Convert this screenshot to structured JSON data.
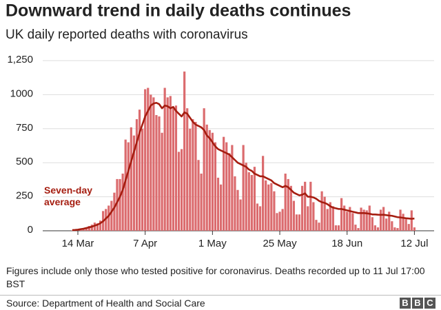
{
  "chart_data": {
    "type": "bar",
    "title": "Downward trend in daily deaths continues",
    "subtitle": "UK daily reported deaths with coronavirus",
    "categories": [
      null,
      null,
      "14 Mar",
      null,
      null,
      null,
      null,
      null,
      null,
      null,
      null,
      null,
      null,
      null,
      null,
      null,
      null,
      null,
      null,
      null,
      null,
      null,
      null,
      null,
      null,
      null,
      "7 Apr",
      null,
      null,
      null,
      null,
      null,
      null,
      null,
      null,
      null,
      null,
      null,
      null,
      null,
      null,
      null,
      null,
      null,
      null,
      null,
      null,
      null,
      null,
      null,
      "1 May",
      null,
      null,
      null,
      null,
      null,
      null,
      null,
      null,
      null,
      null,
      null,
      null,
      null,
      null,
      null,
      null,
      null,
      null,
      null,
      null,
      null,
      null,
      null,
      "25 May",
      null,
      null,
      null,
      null,
      null,
      null,
      null,
      null,
      null,
      null,
      null,
      null,
      null,
      null,
      null,
      null,
      null,
      null,
      null,
      null,
      null,
      null,
      null,
      "18 Jun",
      null,
      null,
      null,
      null,
      null,
      null,
      null,
      null,
      null,
      null,
      null,
      null,
      null,
      null,
      null,
      null,
      null,
      null,
      null,
      null,
      null,
      null,
      null,
      "12 Jul"
    ],
    "series": [
      {
        "type": "bar",
        "color": "#db6b6e",
        "values": [
          2,
          3,
          10,
          15,
          20,
          25,
          35,
          45,
          60,
          55,
          75,
          145,
          160,
          185,
          220,
          280,
          380,
          380,
          420,
          670,
          650,
          760,
          700,
          820,
          890,
          750,
          1040,
          1050,
          1000,
          980,
          850,
          840,
          720,
          1050,
          980,
          990,
          900,
          920,
          580,
          600,
          1170,
          900,
          750,
          820,
          800,
          520,
          420,
          900,
          780,
          740,
          720,
          650,
          390,
          340,
          690,
          650,
          570,
          630,
          400,
          300,
          230,
          630,
          500,
          430,
          410,
          470,
          200,
          180,
          550,
          370,
          340,
          350,
          290,
          130,
          140,
          160,
          420,
          380,
          330,
          220,
          120,
          120,
          330,
          360,
          180,
          360,
          210,
          80,
          60,
          290,
          250,
          160,
          210,
          180,
          40,
          40,
          240,
          185,
          140,
          175,
          130,
          45,
          20,
          170,
          155,
          150,
          185,
          100,
          40,
          25,
          155,
          175,
          90,
          140,
          70,
          25,
          20,
          155,
          125,
          85,
          50,
          150,
          25
        ]
      },
      {
        "type": "line",
        "name": "Seven-day average",
        "color": "#a51d10",
        "values": [
          5,
          6,
          8,
          12,
          15,
          20,
          25,
          30,
          38,
          45,
          55,
          70,
          90,
          110,
          140,
          170,
          210,
          250,
          300,
          370,
          440,
          510,
          580,
          650,
          720,
          780,
          840,
          880,
          920,
          935,
          940,
          930,
          900,
          920,
          915,
          900,
          910,
          880,
          860,
          840,
          870,
          860,
          830,
          800,
          780,
          770,
          760,
          740,
          700,
          680,
          650,
          620,
          600,
          590,
          580,
          570,
          560,
          540,
          520,
          500,
          490,
          480,
          470,
          450,
          440,
          420,
          410,
          400,
          400,
          390,
          380,
          370,
          350,
          340,
          330,
          320,
          330,
          320,
          300,
          280,
          270,
          260,
          265,
          275,
          250,
          250,
          245,
          235,
          220,
          210,
          205,
          195,
          180,
          170,
          165,
          160,
          160,
          155,
          150,
          145,
          140,
          135,
          130,
          130,
          130,
          128,
          125,
          120,
          120,
          118,
          117,
          118,
          115,
          112,
          110,
          105,
          100,
          98,
          95,
          92,
          90,
          88,
          90
        ]
      }
    ],
    "ylim": [
      0,
      1250
    ],
    "yticks": [
      0,
      250,
      500,
      750,
      1000,
      {
        "value": 1250,
        "label": "1,250"
      }
    ],
    "grid": true,
    "note": "Figures include only those who tested positive for coronavirus. Deaths recorded up to 11 Jul 17:00 BST",
    "source": "Source: Department of Health and Social Care",
    "logo": [
      "B",
      "B",
      "C"
    ]
  }
}
